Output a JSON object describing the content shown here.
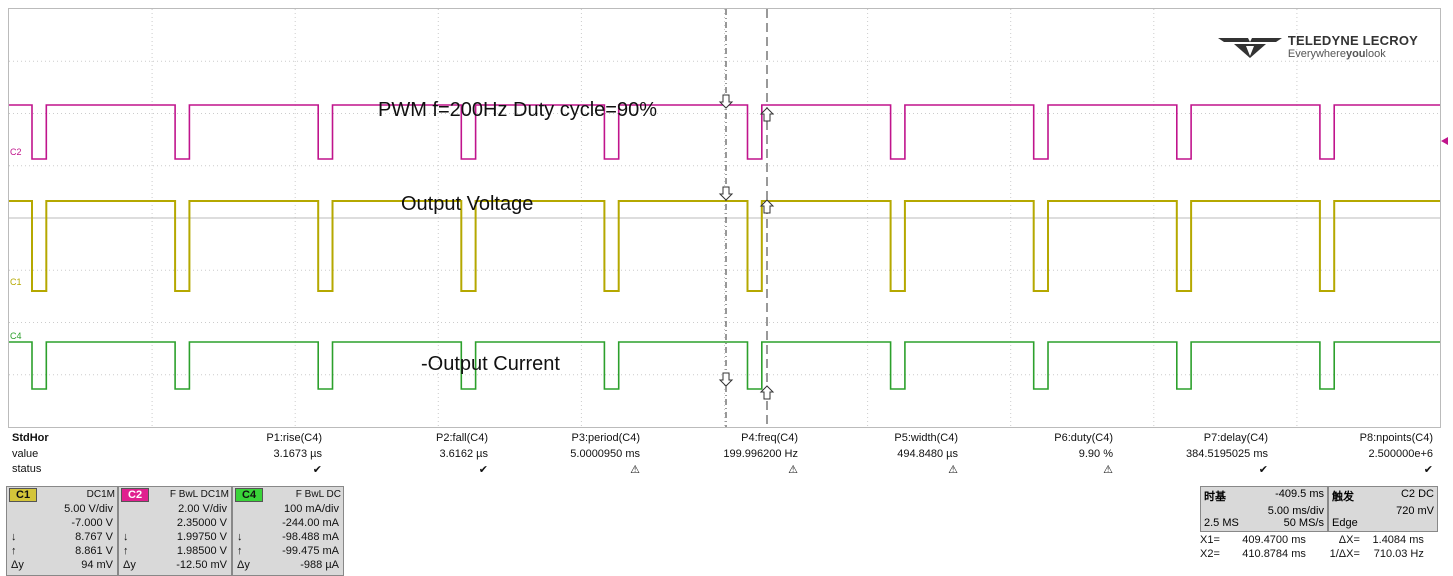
{
  "brand": {
    "name": "TELEDYNE LECROY",
    "tagline_pre": "Everywhere",
    "tagline_bold": "you",
    "tagline_post": "look"
  },
  "annotations": {
    "pwm": "PWM   f=200Hz Duty cycle=90%",
    "vout": "Output Voltage",
    "iout": "-Output Current"
  },
  "channel_markers": {
    "c2": "C2",
    "c1": "C1",
    "c4": "C4"
  },
  "colors": {
    "c1": "#b5a800",
    "c2": "#c0148c",
    "c4": "#2ca02c",
    "c1_box": "#d4c53a",
    "c2_box": "#e0208f",
    "c4_box": "#39d339"
  },
  "measurements": {
    "row_labels": [
      "StdHor",
      "value",
      "status"
    ],
    "params": [
      {
        "name": "P1:rise(C4)",
        "value": "3.1673 µs",
        "status": "✔"
      },
      {
        "name": "P2:fall(C4)",
        "value": "3.6162 µs",
        "status": "✔"
      },
      {
        "name": "P3:period(C4)",
        "value": "5.0000950 ms",
        "status": "⚠"
      },
      {
        "name": "P4:freq(C4)",
        "value": "199.996200 Hz",
        "status": "⚠"
      },
      {
        "name": "P5:width(C4)",
        "value": "494.8480 µs",
        "status": "⚠"
      },
      {
        "name": "P6:duty(C4)",
        "value": "9.90 %",
        "status": "⚠"
      },
      {
        "name": "P7:delay(C4)",
        "value": "384.5195025 ms",
        "status": "✔"
      },
      {
        "name": "P8:npoints(C4)",
        "value": "2.500000e+6",
        "status": "✔"
      }
    ]
  },
  "channels": [
    {
      "tag": "C1",
      "coupling": "DC1M",
      "scale": "5.00 V/div",
      "offset": "-7.000 V",
      "down": "8.767 V",
      "up": "8.861 V",
      "delta": "94 mV"
    },
    {
      "tag": "C2",
      "coupling": "F  BwL DC1M",
      "scale": "2.00 V/div",
      "offset": "2.35000 V",
      "down": "1.99750 V",
      "up": "1.98500 V",
      "delta": "-12.50 mV"
    },
    {
      "tag": "C4",
      "coupling": "F  BwL DC",
      "scale": "100 mA/div",
      "offset": "-244.00 mA",
      "down": "-98.488 mA",
      "up": "-99.475 mA",
      "delta": "-988 µA"
    }
  ],
  "timebase": {
    "label": "时基",
    "delay": "-409.5 ms",
    "scale": "5.00 ms/div",
    "samples": "2.5 MS",
    "rate": "50 MS/s"
  },
  "trigger": {
    "label": "触发",
    "source": "C2 DC",
    "level": "720 mV",
    "type": "Edge"
  },
  "cursors": {
    "x1_label": "X1=",
    "x1": "409.4700 ms",
    "dx_label": "ΔX=",
    "dx": "1.4084 ms",
    "x2_label": "X2=",
    "x2": "410.8784 ms",
    "inv_dx_label": "1/ΔX=",
    "inv_dx": "710.03 Hz"
  }
}
